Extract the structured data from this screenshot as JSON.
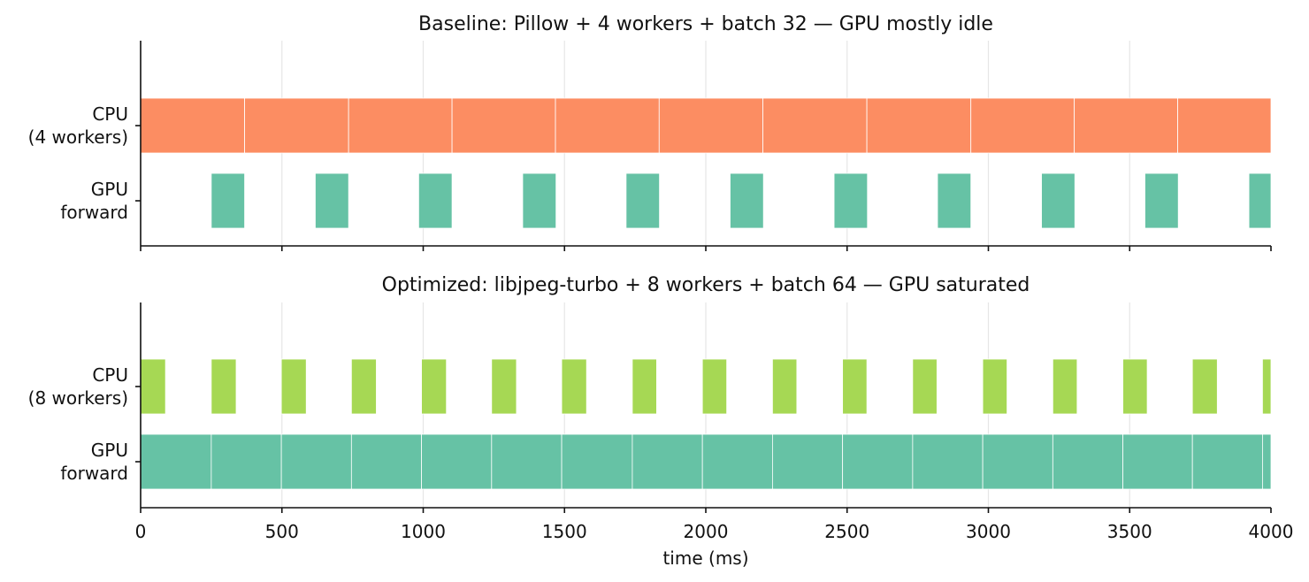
{
  "chart_data": [
    {
      "type": "timeline",
      "title": "Baseline: Pillow + 4 workers + batch 32 — GPU mostly idle",
      "xlim": [
        0,
        4000
      ],
      "grid": "vertical",
      "rows": [
        {
          "label_lines": [
            "CPU",
            "(4 workers)"
          ],
          "color": "#fc8d62",
          "segments": [
            [
              0,
              368
            ],
            [
              368,
              736
            ],
            [
              736,
              1102
            ],
            [
              1102,
              1468
            ],
            [
              1468,
              1835
            ],
            [
              1835,
              2202
            ],
            [
              2202,
              2570
            ],
            [
              2570,
              2938
            ],
            [
              2938,
              3304
            ],
            [
              3304,
              3670
            ],
            [
              3670,
              4000
            ]
          ]
        },
        {
          "label_lines": [
            "GPU",
            "forward"
          ],
          "color": "#66c2a5",
          "segments": [
            [
              250,
              368
            ],
            [
              618,
              736
            ],
            [
              984,
              1102
            ],
            [
              1352,
              1470
            ],
            [
              1718,
              1836
            ],
            [
              2086,
              2204
            ],
            [
              2454,
              2572
            ],
            [
              2820,
              2938
            ],
            [
              3188,
              3306
            ],
            [
              3554,
              3672
            ],
            [
              3922,
              4000
            ]
          ]
        }
      ]
    },
    {
      "type": "timeline",
      "title": "Optimized: libjpeg-turbo + 8 workers + batch 64 — GPU saturated",
      "xlim": [
        0,
        4000
      ],
      "grid": "vertical",
      "xlabel": "time (ms)",
      "xticks": [
        0,
        500,
        1000,
        1500,
        2000,
        2500,
        3000,
        3500,
        4000
      ],
      "rows": [
        {
          "label_lines": [
            "CPU",
            "(8 workers)"
          ],
          "color": "#a6d854",
          "segments": [
            [
              0,
              88
            ],
            [
              250,
              338
            ],
            [
              498,
              586
            ],
            [
              746,
              834
            ],
            [
              994,
              1082
            ],
            [
              1242,
              1330
            ],
            [
              1490,
              1578
            ],
            [
              1740,
              1826
            ],
            [
              1988,
              2074
            ],
            [
              2236,
              2322
            ],
            [
              2484,
              2570
            ],
            [
              2732,
              2818
            ],
            [
              2980,
              3066
            ],
            [
              3228,
              3314
            ],
            [
              3476,
              3562
            ],
            [
              3722,
              3810
            ],
            [
              3970,
              4000
            ]
          ]
        },
        {
          "label_lines": [
            "GPU",
            "forward"
          ],
          "color": "#66c2a5",
          "segments": [
            [
              0,
              250
            ],
            [
              250,
              498
            ],
            [
              498,
              746
            ],
            [
              746,
              994
            ],
            [
              994,
              1242
            ],
            [
              1242,
              1490
            ],
            [
              1490,
              1740
            ],
            [
              1740,
              1988
            ],
            [
              1988,
              2236
            ],
            [
              2236,
              2484
            ],
            [
              2484,
              2732
            ],
            [
              2732,
              2980
            ],
            [
              2980,
              3228
            ],
            [
              3228,
              3476
            ],
            [
              3476,
              3722
            ],
            [
              3722,
              3970
            ],
            [
              3970,
              4000
            ]
          ]
        }
      ]
    }
  ]
}
